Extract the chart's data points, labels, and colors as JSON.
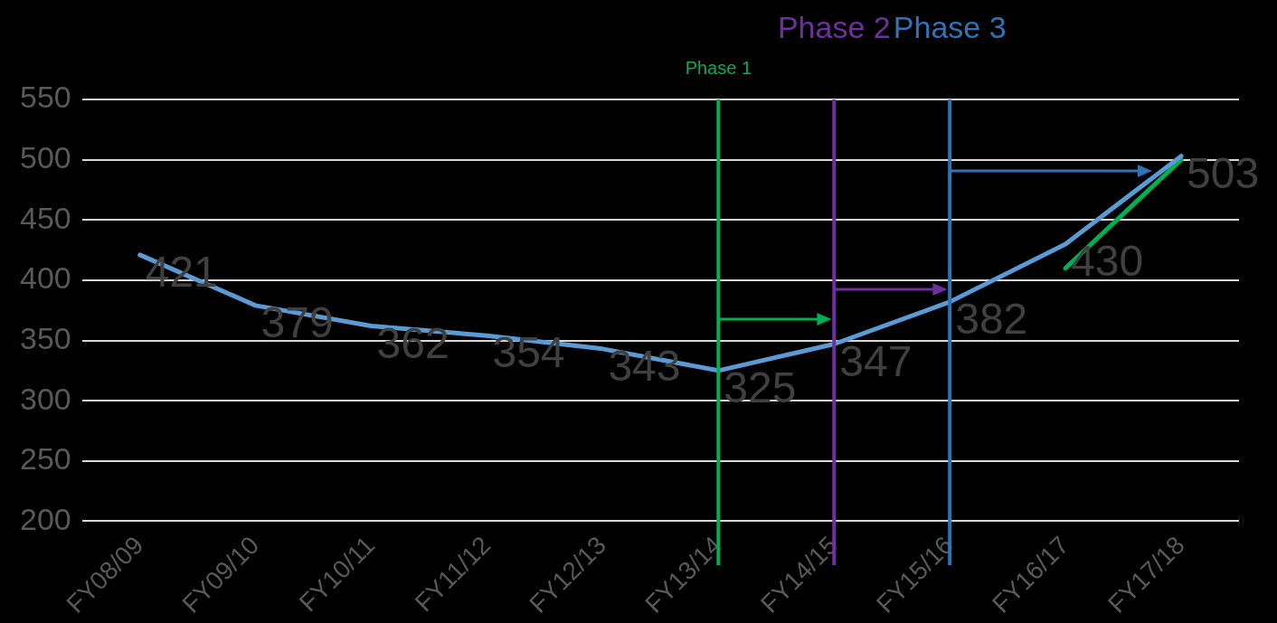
{
  "chart_data": {
    "type": "line",
    "categories": [
      "FY08/09",
      "FY09/10",
      "FY10/11",
      "FY11/12",
      "FY12/13",
      "FY13/14",
      "FY14/15",
      "FY15/16",
      "FY16/17",
      "FY17/18"
    ],
    "series": [
      {
        "color": "#5b9bd5",
        "values": [
          421,
          379,
          362,
          354,
          343,
          325,
          347,
          382,
          430,
          503
        ],
        "value_labels": [
          "421",
          "379",
          "362",
          "354",
          "343",
          "325",
          "347",
          "382",
          "430",
          "503"
        ]
      },
      {
        "type": "line",
        "color": "#00b050",
        "values": [
          null,
          null,
          null,
          null,
          null,
          null,
          null,
          null,
          410,
          500
        ]
      }
    ],
    "ylim": [
      200,
      550
    ],
    "yticks": [
      200,
      250,
      300,
      350,
      400,
      450,
      500,
      550
    ],
    "grid": "y",
    "legend": false,
    "marker": "none",
    "line_style": "solid",
    "ref_lines": [
      {
        "axis": "x",
        "value": "FY13/14",
        "label": "Phase 1",
        "color": "#00b050"
      },
      {
        "axis": "x",
        "value": "FY14/15",
        "label": "Phase 2",
        "color": "#7030a0"
      },
      {
        "axis": "x",
        "value": "FY15/16",
        "label": "Phase 3",
        "color": "#2e75b6"
      }
    ]
  }
}
